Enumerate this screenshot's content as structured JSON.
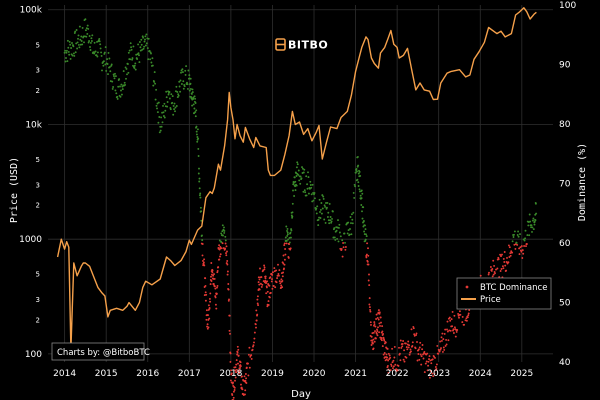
{
  "chart_data": {
    "type": "line",
    "watermark": "BITBO",
    "credit": "Charts by: @BitboBTC",
    "xlabel": "Day",
    "ylabel_left": "Price (USD)",
    "ylabel_right": "Dominance (%)",
    "x_ticks": [
      "2014",
      "2015",
      "2016",
      "2017",
      "2018",
      "2019",
      "2020",
      "2021",
      "2022",
      "2023",
      "2024",
      "2025"
    ],
    "x_range": [
      2013.6,
      2025.75
    ],
    "y_left_scale": "log",
    "y_left_range": [
      85,
      110000
    ],
    "y_left_major_ticks": [
      {
        "value": 100,
        "label": "100"
      },
      {
        "value": 1000,
        "label": "1000"
      },
      {
        "value": 10000,
        "label": "10k"
      },
      {
        "value": 100000,
        "label": "100k"
      }
    ],
    "y_left_minor_ticks": [
      {
        "value": 200,
        "label": "2"
      },
      {
        "value": 300,
        "label": "3"
      },
      {
        "value": 500,
        "label": "5"
      },
      {
        "value": 2000,
        "label": "2"
      },
      {
        "value": 3000,
        "label": "3"
      },
      {
        "value": 5000,
        "label": "5"
      },
      {
        "value": 20000,
        "label": "2"
      },
      {
        "value": 30000,
        "label": "3"
      },
      {
        "value": 50000,
        "label": "5"
      }
    ],
    "y_right_range": [
      40,
      100
    ],
    "y_right_ticks": [
      40,
      50,
      60,
      70,
      80,
      90,
      100
    ],
    "grid": true,
    "legend_position": "bottom-right",
    "series": [
      {
        "name": "Price",
        "color": "#f5a04a",
        "axis": "left",
        "points": [
          [
            2013.83,
            700
          ],
          [
            2013.92,
            1000
          ],
          [
            2013.96,
            900
          ],
          [
            2014.0,
            820
          ],
          [
            2014.05,
            950
          ],
          [
            2014.1,
            850
          ],
          [
            2014.15,
            110
          ],
          [
            2014.22,
            620
          ],
          [
            2014.3,
            480
          ],
          [
            2014.4,
            580
          ],
          [
            2014.45,
            620
          ],
          [
            2014.5,
            620
          ],
          [
            2014.6,
            580
          ],
          [
            2014.7,
            470
          ],
          [
            2014.8,
            380
          ],
          [
            2014.9,
            340
          ],
          [
            2014.97,
            320
          ],
          [
            2015.04,
            210
          ],
          [
            2015.1,
            240
          ],
          [
            2015.25,
            250
          ],
          [
            2015.4,
            240
          ],
          [
            2015.5,
            260
          ],
          [
            2015.55,
            280
          ],
          [
            2015.7,
            240
          ],
          [
            2015.8,
            280
          ],
          [
            2015.88,
            380
          ],
          [
            2015.95,
            430
          ],
          [
            2016.1,
            400
          ],
          [
            2016.3,
            450
          ],
          [
            2016.45,
            700
          ],
          [
            2016.55,
            650
          ],
          [
            2016.65,
            590
          ],
          [
            2016.8,
            650
          ],
          [
            2016.92,
            780
          ],
          [
            2017.0,
            980
          ],
          [
            2017.05,
            900
          ],
          [
            2017.2,
            1200
          ],
          [
            2017.3,
            1300
          ],
          [
            2017.4,
            2300
          ],
          [
            2017.5,
            2600
          ],
          [
            2017.55,
            2500
          ],
          [
            2017.6,
            2800
          ],
          [
            2017.7,
            4500
          ],
          [
            2017.75,
            4000
          ],
          [
            2017.85,
            6500
          ],
          [
            2017.92,
            11000
          ],
          [
            2017.96,
            19000
          ],
          [
            2018.0,
            14000
          ],
          [
            2018.05,
            11000
          ],
          [
            2018.1,
            7500
          ],
          [
            2018.15,
            10000
          ],
          [
            2018.22,
            8000
          ],
          [
            2018.3,
            7000
          ],
          [
            2018.35,
            9400
          ],
          [
            2018.45,
            7500
          ],
          [
            2018.55,
            6300
          ],
          [
            2018.6,
            7700
          ],
          [
            2018.7,
            6500
          ],
          [
            2018.85,
            6300
          ],
          [
            2018.9,
            4000
          ],
          [
            2018.95,
            3600
          ],
          [
            2019.05,
            3600
          ],
          [
            2019.2,
            4000
          ],
          [
            2019.3,
            5500
          ],
          [
            2019.4,
            8000
          ],
          [
            2019.48,
            13000
          ],
          [
            2019.55,
            10000
          ],
          [
            2019.65,
            10500
          ],
          [
            2019.75,
            8200
          ],
          [
            2019.85,
            9200
          ],
          [
            2019.95,
            7200
          ],
          [
            2020.05,
            8500
          ],
          [
            2020.12,
            9800
          ],
          [
            2020.2,
            5000
          ],
          [
            2020.3,
            7000
          ],
          [
            2020.4,
            9500
          ],
          [
            2020.55,
            9200
          ],
          [
            2020.65,
            11500
          ],
          [
            2020.8,
            13000
          ],
          [
            2020.9,
            18000
          ],
          [
            2021.0,
            29000
          ],
          [
            2021.1,
            40000
          ],
          [
            2021.15,
            47000
          ],
          [
            2021.25,
            58000
          ],
          [
            2021.3,
            55000
          ],
          [
            2021.38,
            38000
          ],
          [
            2021.45,
            34000
          ],
          [
            2021.55,
            31000
          ],
          [
            2021.6,
            42000
          ],
          [
            2021.7,
            47000
          ],
          [
            2021.78,
            56000
          ],
          [
            2021.85,
            66000
          ],
          [
            2021.92,
            50000
          ],
          [
            2022.0,
            47000
          ],
          [
            2022.05,
            38000
          ],
          [
            2022.15,
            40000
          ],
          [
            2022.25,
            46000
          ],
          [
            2022.35,
            30000
          ],
          [
            2022.45,
            20000
          ],
          [
            2022.55,
            23000
          ],
          [
            2022.65,
            20000
          ],
          [
            2022.78,
            19500
          ],
          [
            2022.87,
            16500
          ],
          [
            2022.97,
            16600
          ],
          [
            2023.05,
            23000
          ],
          [
            2023.2,
            28000
          ],
          [
            2023.3,
            29000
          ],
          [
            2023.5,
            30000
          ],
          [
            2023.65,
            26000
          ],
          [
            2023.75,
            27000
          ],
          [
            2023.85,
            37000
          ],
          [
            2023.97,
            43000
          ],
          [
            2024.1,
            52000
          ],
          [
            2024.2,
            70000
          ],
          [
            2024.4,
            62000
          ],
          [
            2024.5,
            65000
          ],
          [
            2024.6,
            58000
          ],
          [
            2024.75,
            62000
          ],
          [
            2024.85,
            90000
          ],
          [
            2024.95,
            96000
          ],
          [
            2025.05,
            104000
          ],
          [
            2025.12,
            96000
          ],
          [
            2025.2,
            83000
          ],
          [
            2025.3,
            92000
          ],
          [
            2025.35,
            95000
          ]
        ]
      },
      {
        "name": "BTC Dominance",
        "color_high": "#3a8a2a",
        "color_low": "#e53935",
        "low_threshold": 60,
        "axis": "right",
        "points": [
          [
            2014.0,
            92
          ],
          [
            2014.1,
            92.5
          ],
          [
            2014.2,
            93
          ],
          [
            2014.3,
            94
          ],
          [
            2014.4,
            94.5
          ],
          [
            2014.5,
            96
          ],
          [
            2014.6,
            95
          ],
          [
            2014.7,
            92
          ],
          [
            2014.8,
            93
          ],
          [
            2014.9,
            91
          ],
          [
            2015.0,
            91
          ],
          [
            2015.1,
            89
          ],
          [
            2015.2,
            87
          ],
          [
            2015.3,
            86
          ],
          [
            2015.4,
            87
          ],
          [
            2015.5,
            90
          ],
          [
            2015.6,
            92
          ],
          [
            2015.7,
            91
          ],
          [
            2015.8,
            92
          ],
          [
            2015.9,
            93
          ],
          [
            2016.0,
            93
          ],
          [
            2016.1,
            90
          ],
          [
            2016.2,
            85
          ],
          [
            2016.3,
            80
          ],
          [
            2016.4,
            82
          ],
          [
            2016.5,
            86
          ],
          [
            2016.6,
            83
          ],
          [
            2016.7,
            85
          ],
          [
            2016.8,
            87
          ],
          [
            2016.9,
            88
          ],
          [
            2017.0,
            87
          ],
          [
            2017.05,
            85
          ],
          [
            2017.1,
            84
          ],
          [
            2017.15,
            82
          ],
          [
            2017.2,
            78
          ],
          [
            2017.25,
            70
          ],
          [
            2017.3,
            62
          ],
          [
            2017.35,
            56
          ],
          [
            2017.4,
            50
          ],
          [
            2017.45,
            46
          ],
          [
            2017.5,
            52
          ],
          [
            2017.55,
            57
          ],
          [
            2017.6,
            53
          ],
          [
            2017.65,
            50
          ],
          [
            2017.7,
            58
          ],
          [
            2017.75,
            60
          ],
          [
            2017.8,
            62
          ],
          [
            2017.85,
            60
          ],
          [
            2017.9,
            58
          ],
          [
            2017.95,
            52
          ],
          [
            2018.0,
            38
          ],
          [
            2018.05,
            35
          ],
          [
            2018.1,
            38
          ],
          [
            2018.15,
            41
          ],
          [
            2018.2,
            40
          ],
          [
            2018.25,
            37
          ],
          [
            2018.3,
            35
          ],
          [
            2018.35,
            36
          ],
          [
            2018.4,
            39
          ],
          [
            2018.5,
            42
          ],
          [
            2018.6,
            47
          ],
          [
            2018.65,
            51
          ],
          [
            2018.7,
            54
          ],
          [
            2018.8,
            55
          ],
          [
            2018.85,
            52
          ],
          [
            2018.9,
            51
          ],
          [
            2018.95,
            53
          ],
          [
            2019.0,
            54
          ],
          [
            2019.1,
            55
          ],
          [
            2019.2,
            54
          ],
          [
            2019.25,
            55
          ],
          [
            2019.3,
            59
          ],
          [
            2019.35,
            62
          ],
          [
            2019.4,
            58
          ],
          [
            2019.45,
            62
          ],
          [
            2019.5,
            69
          ],
          [
            2019.55,
            70
          ],
          [
            2019.6,
            72
          ],
          [
            2019.7,
            71
          ],
          [
            2019.8,
            70
          ],
          [
            2019.9,
            70
          ],
          [
            2020.0,
            68
          ],
          [
            2020.1,
            65
          ],
          [
            2020.2,
            66
          ],
          [
            2020.3,
            65
          ],
          [
            2020.4,
            65
          ],
          [
            2020.5,
            62
          ],
          [
            2020.6,
            62
          ],
          [
            2020.7,
            59
          ],
          [
            2020.8,
            62
          ],
          [
            2020.9,
            63
          ],
          [
            2021.0,
            70
          ],
          [
            2021.05,
            73
          ],
          [
            2021.1,
            70
          ],
          [
            2021.15,
            68
          ],
          [
            2021.2,
            62
          ],
          [
            2021.25,
            60
          ],
          [
            2021.3,
            58
          ],
          [
            2021.35,
            47
          ],
          [
            2021.4,
            43
          ],
          [
            2021.45,
            45
          ],
          [
            2021.5,
            46
          ],
          [
            2021.55,
            47
          ],
          [
            2021.6,
            46
          ],
          [
            2021.65,
            44
          ],
          [
            2021.7,
            42
          ],
          [
            2021.75,
            41
          ],
          [
            2021.8,
            40
          ],
          [
            2021.9,
            41
          ],
          [
            2022.0,
            40
          ],
          [
            2022.1,
            42
          ],
          [
            2022.2,
            41
          ],
          [
            2022.3,
            43
          ],
          [
            2022.4,
            45
          ],
          [
            2022.5,
            42
          ],
          [
            2022.6,
            41
          ],
          [
            2022.7,
            40
          ],
          [
            2022.8,
            39
          ],
          [
            2022.9,
            40
          ],
          [
            2023.0,
            41
          ],
          [
            2023.1,
            43
          ],
          [
            2023.2,
            45
          ],
          [
            2023.3,
            47
          ],
          [
            2023.4,
            46
          ],
          [
            2023.5,
            49
          ],
          [
            2023.6,
            48
          ],
          [
            2023.7,
            49
          ],
          [
            2023.8,
            51
          ],
          [
            2023.9,
            52
          ],
          [
            2024.0,
            53
          ],
          [
            2024.1,
            51
          ],
          [
            2024.2,
            54
          ],
          [
            2024.3,
            55
          ],
          [
            2024.4,
            56
          ],
          [
            2024.5,
            56
          ],
          [
            2024.6,
            57
          ],
          [
            2024.7,
            58
          ],
          [
            2024.8,
            61
          ],
          [
            2024.9,
            60
          ],
          [
            2025.0,
            59
          ],
          [
            2025.1,
            61
          ],
          [
            2025.2,
            63
          ],
          [
            2025.3,
            64
          ],
          [
            2025.35,
            65
          ]
        ]
      }
    ]
  }
}
